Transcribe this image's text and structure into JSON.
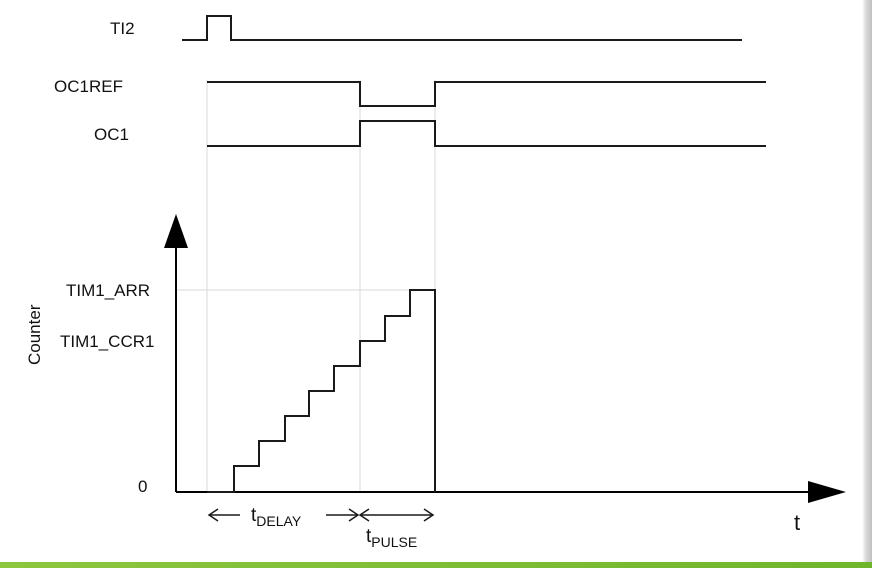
{
  "diagram": {
    "signals": {
      "ti2": "TI2",
      "oc1ref": "OC1REF",
      "oc1": "OC1"
    },
    "counter": {
      "ylabel": "Counter",
      "arr_label": "TIM1_ARR",
      "ccr1_label": "TIM1_CCR1",
      "zero_label": "0",
      "xlabel": "t"
    },
    "timing": {
      "delay_main": "t",
      "delay_sub": "DELAY",
      "pulse_main": "t",
      "pulse_sub": "PULSE"
    }
  }
}
